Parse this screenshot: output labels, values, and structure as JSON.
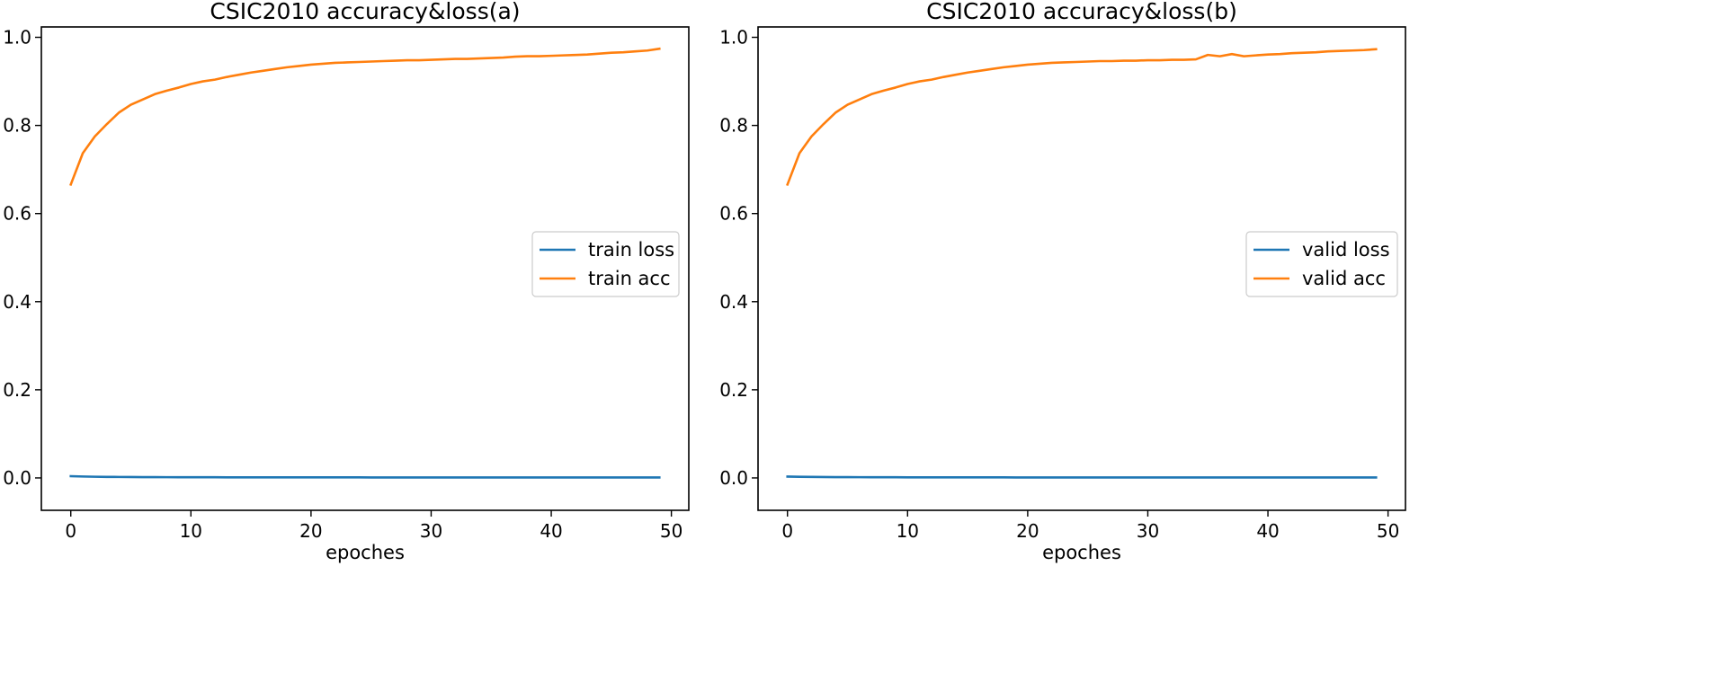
{
  "chart_data": [
    {
      "type": "line",
      "title": "CSIC2010 accuracy&loss(a)",
      "xlabel": "epoches",
      "ylabel": "",
      "xlim": [
        -2.45,
        51.45
      ],
      "ylim": [
        -0.0735,
        1.0235
      ],
      "xticks": [
        0,
        10,
        20,
        30,
        40,
        50
      ],
      "yticks": [
        0.0,
        0.2,
        0.4,
        0.6,
        0.8,
        1.0
      ],
      "xtick_labels": [
        "0",
        "10",
        "20",
        "30",
        "40",
        "50"
      ],
      "ytick_labels": [
        "0.0",
        "0.2",
        "0.4",
        "0.6",
        "0.8",
        "1.0"
      ],
      "grid": false,
      "legend_position": "center-right",
      "x": [
        0,
        1,
        2,
        3,
        4,
        5,
        6,
        7,
        8,
        9,
        10,
        11,
        12,
        13,
        14,
        15,
        16,
        17,
        18,
        19,
        20,
        21,
        22,
        23,
        24,
        25,
        26,
        27,
        28,
        29,
        30,
        31,
        32,
        33,
        34,
        35,
        36,
        37,
        38,
        39,
        40,
        41,
        42,
        43,
        44,
        45,
        46,
        47,
        48,
        49
      ],
      "series": [
        {
          "name": "train loss",
          "color": "#1f77b4",
          "values": [
            0.004,
            0.0032,
            0.0027,
            0.0024,
            0.0022,
            0.002,
            0.0019,
            0.0018,
            0.0017,
            0.0016,
            0.0016,
            0.0015,
            0.0015,
            0.0014,
            0.0014,
            0.0014,
            0.0013,
            0.0013,
            0.0013,
            0.0013,
            0.0012,
            0.0012,
            0.0012,
            0.0012,
            0.0012,
            0.0011,
            0.0011,
            0.0011,
            0.0011,
            0.0011,
            0.0011,
            0.0011,
            0.001,
            0.001,
            0.001,
            0.001,
            0.001,
            0.001,
            0.001,
            0.001,
            0.001,
            0.001,
            0.001,
            0.001,
            0.001,
            0.001,
            0.001,
            0.001,
            0.001,
            0.001
          ]
        },
        {
          "name": "train acc",
          "color": "#ff7f0e",
          "values": [
            0.666,
            0.737,
            0.775,
            0.803,
            0.829,
            0.847,
            0.859,
            0.871,
            0.879,
            0.886,
            0.894,
            0.9,
            0.904,
            0.91,
            0.915,
            0.92,
            0.924,
            0.928,
            0.932,
            0.935,
            0.938,
            0.94,
            0.942,
            0.943,
            0.944,
            0.945,
            0.946,
            0.947,
            0.948,
            0.948,
            0.949,
            0.95,
            0.951,
            0.951,
            0.952,
            0.953,
            0.954,
            0.956,
            0.957,
            0.957,
            0.958,
            0.959,
            0.96,
            0.961,
            0.963,
            0.965,
            0.966,
            0.968,
            0.97,
            0.974
          ]
        }
      ]
    },
    {
      "type": "line",
      "title": "CSIC2010 accuracy&loss(b)",
      "xlabel": "epoches",
      "ylabel": "",
      "xlim": [
        -2.45,
        51.45
      ],
      "ylim": [
        -0.0735,
        1.0235
      ],
      "xticks": [
        0,
        10,
        20,
        30,
        40,
        50
      ],
      "yticks": [
        0.0,
        0.2,
        0.4,
        0.6,
        0.8,
        1.0
      ],
      "xtick_labels": [
        "0",
        "10",
        "20",
        "30",
        "40",
        "50"
      ],
      "ytick_labels": [
        "0.0",
        "0.2",
        "0.4",
        "0.6",
        "0.8",
        "1.0"
      ],
      "grid": false,
      "legend_position": "center-right",
      "x": [
        0,
        1,
        2,
        3,
        4,
        5,
        6,
        7,
        8,
        9,
        10,
        11,
        12,
        13,
        14,
        15,
        16,
        17,
        18,
        19,
        20,
        21,
        22,
        23,
        24,
        25,
        26,
        27,
        28,
        29,
        30,
        31,
        32,
        33,
        34,
        35,
        36,
        37,
        38,
        39,
        40,
        41,
        42,
        43,
        44,
        45,
        46,
        47,
        48,
        49
      ],
      "series": [
        {
          "name": "valid loss",
          "color": "#1f77b4",
          "values": [
            0.003,
            0.0026,
            0.0023,
            0.0021,
            0.0019,
            0.0018,
            0.0017,
            0.0016,
            0.0015,
            0.0015,
            0.0014,
            0.0014,
            0.0013,
            0.0013,
            0.0013,
            0.0012,
            0.0012,
            0.0012,
            0.0012,
            0.0011,
            0.0011,
            0.0011,
            0.0011,
            0.0011,
            0.0011,
            0.001,
            0.001,
            0.001,
            0.001,
            0.001,
            0.001,
            0.001,
            0.001,
            0.001,
            0.001,
            0.001,
            0.001,
            0.001,
            0.001,
            0.001,
            0.001,
            0.001,
            0.001,
            0.001,
            0.001,
            0.001,
            0.001,
            0.001,
            0.001,
            0.001
          ]
        },
        {
          "name": "valid acc",
          "color": "#ff7f0e",
          "values": [
            0.666,
            0.737,
            0.775,
            0.803,
            0.829,
            0.847,
            0.859,
            0.871,
            0.879,
            0.886,
            0.894,
            0.9,
            0.904,
            0.91,
            0.915,
            0.92,
            0.924,
            0.928,
            0.932,
            0.935,
            0.938,
            0.94,
            0.942,
            0.943,
            0.944,
            0.945,
            0.946,
            0.946,
            0.947,
            0.947,
            0.948,
            0.948,
            0.949,
            0.949,
            0.95,
            0.96,
            0.957,
            0.962,
            0.957,
            0.959,
            0.961,
            0.962,
            0.964,
            0.965,
            0.966,
            0.968,
            0.969,
            0.97,
            0.971,
            0.973
          ]
        }
      ]
    }
  ]
}
